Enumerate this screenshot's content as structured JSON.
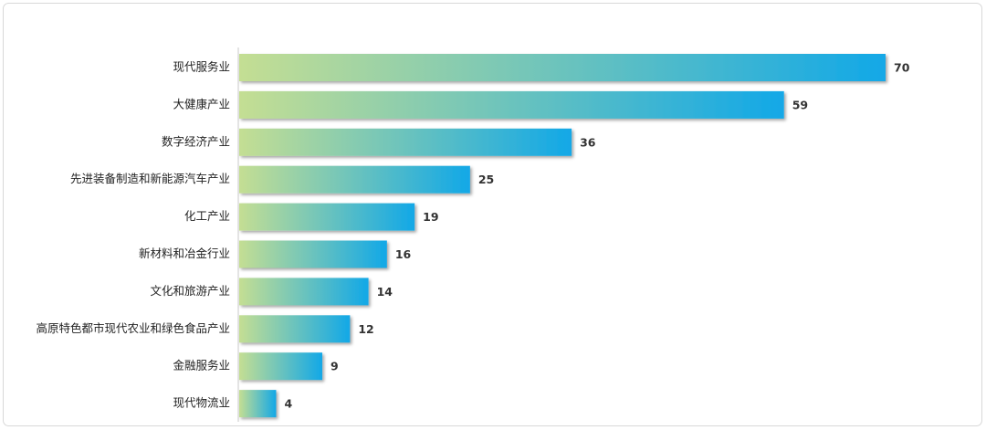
{
  "chart_data": {
    "type": "hbar",
    "categories": [
      "现代服务业",
      "大健康产业",
      "数字经济产业",
      "先进装备制造和新能源汽车产业",
      "化工产业",
      "新材料和冶金行业",
      "文化和旅游产业",
      "高原特色都市现代农业和绿色食品产业",
      "金融服务业",
      "现代物流业"
    ],
    "values": [
      70,
      59,
      36,
      25,
      19,
      16,
      14,
      12,
      9,
      4
    ],
    "colors": [
      "#c4de93",
      "#12a8e7"
    ]
  }
}
